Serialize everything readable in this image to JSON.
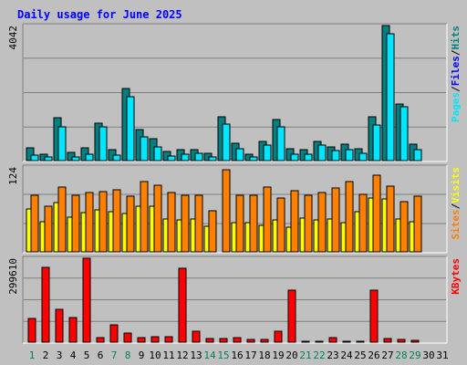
{
  "chart_data": {
    "type": "bar",
    "title": "Daily usage for June 2025",
    "days": [
      "1",
      "2",
      "3",
      "4",
      "5",
      "6",
      "7",
      "8",
      "9",
      "10",
      "11",
      "12",
      "13",
      "14",
      "15",
      "16",
      "17",
      "18",
      "19",
      "20",
      "21",
      "22",
      "23",
      "24",
      "25",
      "26",
      "27",
      "28",
      "29",
      "30",
      "31"
    ],
    "weekend_days": [
      "1",
      "7",
      "8",
      "14",
      "15",
      "21",
      "22",
      "28",
      "29"
    ],
    "panels": [
      {
        "id": "hits",
        "ymax_label": "4042",
        "ymax": 4042,
        "legend": [
          {
            "name": "Pages",
            "color": "#00E6FF"
          },
          {
            "name": "Files",
            "color": "#0000FF"
          },
          {
            "name": "Hits",
            "color": "#008080"
          }
        ],
        "series": [
          {
            "name": "Hits",
            "color": "#008080",
            "values": [
              380,
              200,
              1280,
              240,
              380,
              1120,
              340,
              2170,
              920,
              660,
              270,
              330,
              330,
              220,
              1300,
              520,
              200,
              580,
              1220,
              350,
              320,
              580,
              410,
              480,
              350,
              1320,
              4042,
              1700,
              490,
              0,
              0
            ]
          },
          {
            "name": "Pages",
            "color": "#00E6FF",
            "values": [
              160,
              110,
              1000,
              110,
              200,
              1000,
              160,
              1900,
              700,
              420,
              140,
              200,
              220,
              110,
              1100,
              360,
              110,
              470,
              1000,
              200,
              180,
              460,
              300,
              340,
              210,
              1060,
              3800,
              1600,
              320,
              0,
              0
            ]
          }
        ]
      },
      {
        "id": "visits",
        "ymax_label": "124",
        "ymax": 124,
        "legend": [
          {
            "name": "Sites",
            "color": "#FF8000"
          },
          {
            "name": "Visits",
            "color": "#FFFF00"
          }
        ],
        "series": [
          {
            "name": "Visits",
            "color": "#FFFF00",
            "values": [
              62,
              44,
              72,
              50,
              57,
              61,
              59,
              56,
              67,
              66,
              48,
              46,
              48,
              37,
              0,
              42,
              42,
              39,
              47,
              36,
              49,
              46,
              48,
              42,
              58,
              79,
              77,
              48,
              44,
              0,
              0
            ]
          },
          {
            "name": "Sites",
            "color": "#FF8000",
            "values": [
              82,
              66,
              95,
              83,
              87,
              88,
              91,
              81,
              102,
              97,
              86,
              82,
              82,
              60,
              120,
              82,
              82,
              94,
              79,
              89,
              82,
              87,
              93,
              103,
              84,
              112,
              96,
              73,
              81,
              0,
              0
            ]
          }
        ]
      },
      {
        "id": "kbytes",
        "ymax_label": "299610",
        "ymax": 299610,
        "legend": [
          {
            "name": "KBytes",
            "color": "#FF0000"
          }
        ],
        "series": [
          {
            "name": "KBytes",
            "color": "#FF0000",
            "values": [
              84000,
              268000,
              118000,
              88000,
              299610,
              16000,
              62000,
              34000,
              17000,
              19000,
              19000,
              265000,
              39000,
              13000,
              12000,
              16000,
              11000,
              11000,
              39000,
              187000,
              4000,
              4000,
              16000,
              4000,
              4000,
              187000,
              13000,
              10000,
              6000,
              0,
              0
            ]
          }
        ]
      }
    ]
  },
  "colors": {
    "background": "#C0C0C0",
    "title": "#0000FF",
    "weekday_label": "#000000",
    "weekend_label": "#00805C"
  }
}
